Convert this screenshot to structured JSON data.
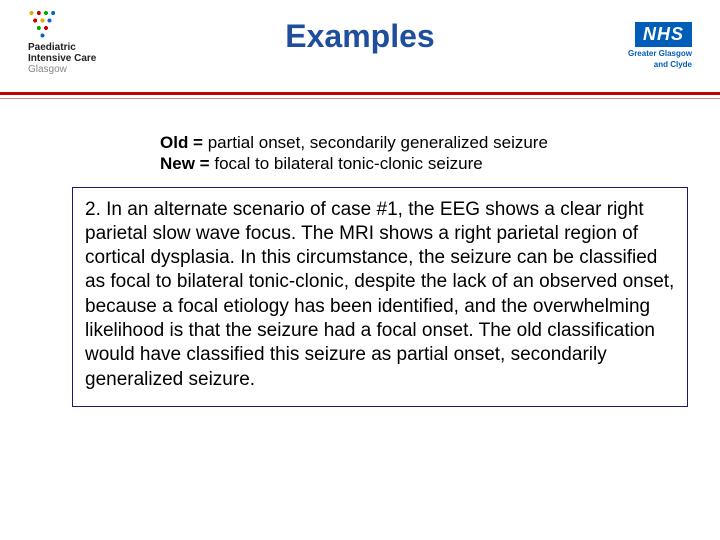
{
  "title": "Examples",
  "logo_left": {
    "line1": "Paediatric",
    "line2": "Intensive Care",
    "line3": "Glasgow"
  },
  "logo_right": {
    "nhs": "NHS",
    "sub1": "Greater Glasgow",
    "sub2": "and Clyde"
  },
  "definitions": {
    "old_label": "Old = ",
    "old_text": "partial onset, secondarily generalized seizure",
    "new_label": "New = ",
    "new_text": "focal to bilateral tonic-clonic seizure"
  },
  "case": "2. In an alternate scenario of case #1, the EEG shows a clear right parietal slow wave focus.  The MRI shows a right parietal region of cortical dysplasia.  In this circumstance, the seizure can be classified as focal to bilateral tonic-clonic, despite the lack of an observed onset, because a focal etiology has been identified, and the overwhelming likelihood is that the seizure had a focal onset.  The old classification would have classified this seizure as partial onset, secondarily generalized seizure.",
  "colors": {
    "title": "#1f4e9c",
    "rule": "#c00000",
    "box_border": "#1a1a6a",
    "nhs": "#005eb8"
  }
}
